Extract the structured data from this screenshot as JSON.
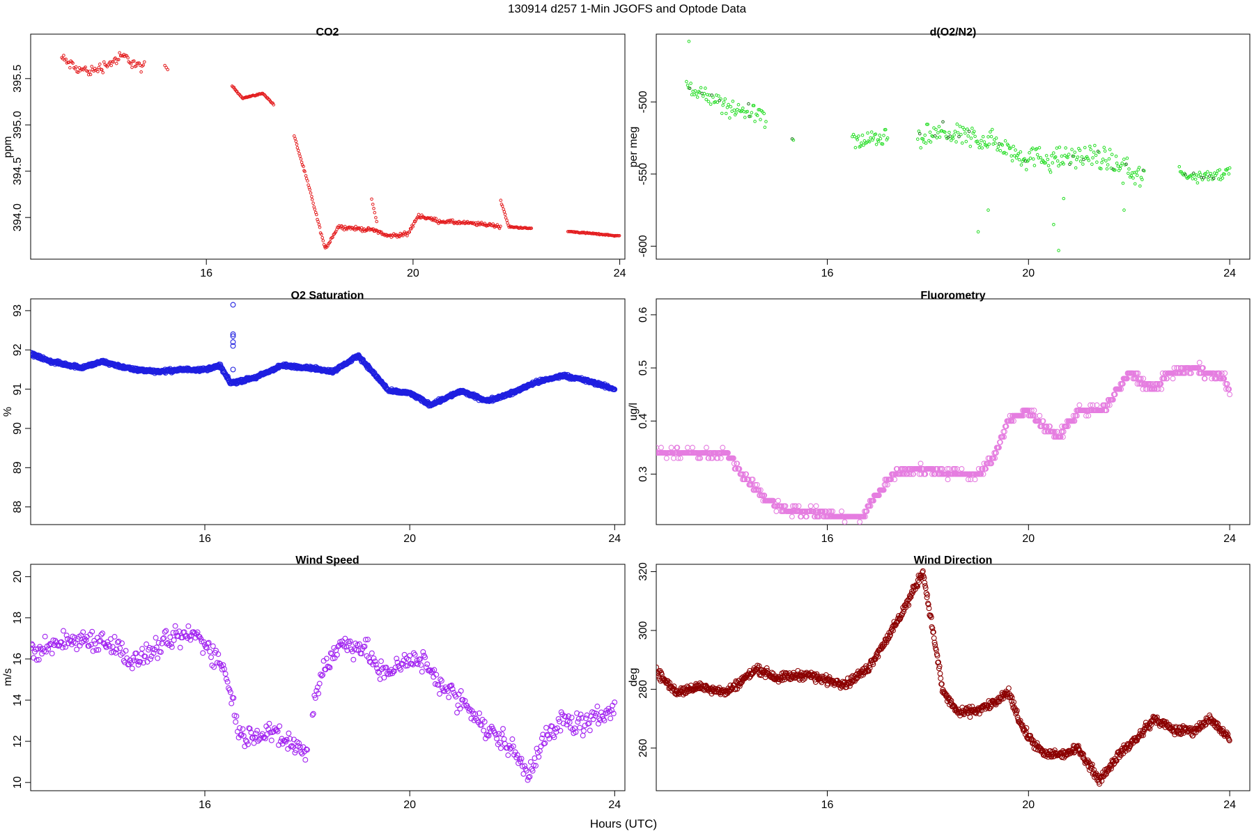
{
  "figure": {
    "title": "130914   d257   1-Min  JGOFS and Optode Data",
    "xlabel": "Hours (UTC)"
  },
  "colors": {
    "co2": "#e31a1c",
    "o2n2": "#22dd22",
    "o2n2_dark": "#1a6a1a",
    "o2sat": "#1f1fe0",
    "fluor": "#e57de0",
    "wspd": "#a020f0",
    "wdir": "#8b0000"
  },
  "chart_data": [
    {
      "id": "co2",
      "type": "scatter",
      "title": "CO2",
      "xlabel": "",
      "ylabel": "ppm",
      "xlim": [
        12.6,
        24.1
      ],
      "ylim": [
        393.55,
        395.98
      ],
      "xticks": [
        16,
        20,
        24
      ],
      "yticks": [
        394.0,
        394.5,
        395.0,
        395.5
      ],
      "yticklabels": [
        "394.0",
        "394.5",
        "395.0",
        "395.5"
      ],
      "segments": [
        {
          "x": [
            13.2,
            13.5,
            13.8,
            14.1,
            14.4,
            14.7,
            14.8
          ],
          "y": [
            395.72,
            395.6,
            395.58,
            395.66,
            395.74,
            395.63,
            395.62
          ],
          "step": 0.02,
          "noise": 0.09
        },
        {
          "x": [
            15.2,
            15.25
          ],
          "y": [
            395.62,
            395.6
          ],
          "step": 0.025,
          "noise": 0.04
        },
        {
          "x": [
            16.5,
            16.7,
            17.1,
            17.3
          ],
          "y": [
            395.42,
            395.29,
            395.34,
            395.22
          ],
          "step": 0.016,
          "noise": 0.01
        },
        {
          "x": [
            17.7,
            18.0,
            18.3
          ],
          "y": [
            394.88,
            394.3,
            393.66
          ],
          "step": 0.016,
          "noise": 0.02
        },
        {
          "x": [
            18.3,
            18.55,
            18.9,
            19.3,
            19.5,
            19.9,
            20.1,
            20.5,
            21.0,
            21.5,
            21.7
          ],
          "y": [
            393.66,
            393.9,
            393.88,
            393.86,
            393.8,
            393.82,
            394.02,
            393.96,
            393.94,
            393.92,
            393.9
          ],
          "step": 0.016,
          "noise": 0.03
        },
        {
          "x": [
            19.2,
            19.3
          ],
          "y": [
            394.2,
            393.95
          ],
          "step": 0.02,
          "noise": 0.02
        },
        {
          "x": [
            21.7,
            21.85,
            22.3
          ],
          "y": [
            394.18,
            393.9,
            393.88
          ],
          "step": 0.016,
          "noise": 0.01
        },
        {
          "x": [
            23.0,
            24.0
          ],
          "y": [
            393.85,
            393.8
          ],
          "step": 0.016,
          "noise": 0.01
        }
      ],
      "marker": "dot"
    },
    {
      "id": "o2n2",
      "type": "scatter",
      "title": "d(O2/N2)",
      "xlabel": "",
      "ylabel": "per meg",
      "xlim": [
        12.6,
        24.4
      ],
      "ylim": [
        -609,
        -453
      ],
      "xticks": [
        16,
        20,
        24
      ],
      "yticks": [
        -500,
        -550,
        -600
      ],
      "yticklabels": [
        "-500",
        "-550",
        "-600"
      ],
      "segments": [
        {
          "x": [
            13.2,
            13.6,
            14.1,
            14.6,
            14.8
          ],
          "y": [
            -488,
            -497,
            -505,
            -508,
            -512
          ],
          "step": 0.022,
          "noise": 10
        },
        {
          "x": [
            15.3,
            15.35
          ],
          "y": [
            -528,
            -525
          ],
          "step": 0.03,
          "noise": 6
        },
        {
          "x": [
            16.5,
            16.9,
            17.2
          ],
          "y": [
            -527,
            -527,
            -524
          ],
          "step": 0.02,
          "noise": 9
        },
        {
          "x": [
            17.8,
            18.2,
            18.8,
            19.4,
            19.9,
            20.5,
            21.0,
            21.6,
            22.0,
            22.3
          ],
          "y": [
            -527,
            -522,
            -524,
            -528,
            -538,
            -540,
            -538,
            -540,
            -548,
            -552
          ],
          "step": 0.02,
          "noise": 12
        },
        {
          "x": [
            23.0,
            23.5,
            24.0
          ],
          "y": [
            -550,
            -552,
            -548
          ],
          "step": 0.02,
          "noise": 6
        }
      ],
      "outliers": {
        "x": [
          13.25,
          19.0,
          19.2,
          20.5,
          20.6,
          20.7,
          21.9
        ],
        "y": [
          -458,
          -590,
          -575,
          -585,
          -603,
          -567,
          -575
        ]
      },
      "marker": "dot"
    },
    {
      "id": "o2sat",
      "type": "scatter",
      "title": "O2 Saturation",
      "xlabel": "",
      "ylabel": "%",
      "xlim": [
        12.6,
        24.2
      ],
      "ylim": [
        87.55,
        93.3
      ],
      "xticks": [
        16,
        20,
        24
      ],
      "yticks": [
        88,
        89,
        90,
        91,
        92,
        93
      ],
      "yticklabels": [
        "88",
        "89",
        "90",
        "91",
        "92",
        "93"
      ],
      "segments": [
        {
          "x": [
            12.6,
            13.0,
            13.6,
            14.0,
            14.6,
            15.1,
            15.6,
            16.0,
            16.3,
            16.5,
            17.0,
            17.5,
            18.0,
            18.5,
            19.0,
            19.3,
            19.6,
            20.0,
            20.4,
            21.0,
            21.5,
            22.0,
            22.4,
            23.0,
            23.5,
            24.0
          ],
          "y": [
            91.9,
            91.7,
            91.55,
            91.7,
            91.5,
            91.45,
            91.5,
            91.5,
            91.6,
            91.15,
            91.3,
            91.6,
            91.55,
            91.45,
            91.85,
            91.4,
            90.95,
            90.9,
            90.6,
            90.95,
            90.7,
            90.9,
            91.15,
            91.35,
            91.2,
            91.0
          ],
          "step": 0.008,
          "noise": 0.06
        }
      ],
      "outliers": {
        "x": [
          16.55,
          16.55,
          16.55,
          16.55,
          16.55,
          16.55
        ],
        "y": [
          93.15,
          92.4,
          92.35,
          92.2,
          92.1,
          91.5
        ]
      },
      "marker": "circle"
    },
    {
      "id": "fluor",
      "type": "scatter",
      "title": "Fluorometry",
      "xlabel": "",
      "ylabel": "ug/l",
      "xlim": [
        12.6,
        24.4
      ],
      "ylim": [
        0.205,
        0.63
      ],
      "xticks": [
        16,
        20,
        24
      ],
      "yticks": [
        0.3,
        0.4,
        0.5,
        0.6
      ],
      "yticklabels": [
        "0.3",
        "0.4",
        "0.5",
        "0.6"
      ],
      "segments": [
        {
          "x": [
            12.6,
            13.3,
            14.0,
            14.3,
            14.8,
            15.2,
            15.7,
            16.2,
            16.7,
            16.9,
            17.3,
            17.8,
            18.5,
            19.0,
            19.3,
            19.6,
            20.0,
            20.3,
            20.6,
            21.0,
            21.5,
            22.0,
            22.5,
            22.8,
            23.3,
            23.9,
            24.0
          ],
          "y": [
            0.34,
            0.34,
            0.34,
            0.3,
            0.25,
            0.23,
            0.23,
            0.22,
            0.22,
            0.25,
            0.3,
            0.31,
            0.3,
            0.3,
            0.33,
            0.4,
            0.42,
            0.39,
            0.37,
            0.42,
            0.42,
            0.49,
            0.46,
            0.49,
            0.5,
            0.48,
            0.45
          ],
          "step": 0.012,
          "noise": 0.012,
          "quant": 0.01
        }
      ],
      "marker": "circle"
    },
    {
      "id": "wspd",
      "type": "scatter",
      "title": "Wind Speed",
      "xlabel": "",
      "ylabel": "m/s",
      "xlim": [
        12.6,
        24.2
      ],
      "ylim": [
        9.6,
        20.6
      ],
      "xticks": [
        16,
        20,
        24
      ],
      "yticks": [
        10,
        12,
        14,
        16,
        18,
        20
      ],
      "yticklabels": [
        "10",
        "12",
        "14",
        "16",
        "18",
        "20"
      ],
      "segments": [
        {
          "x": [
            12.6,
            13.2,
            13.7,
            14.2,
            14.6,
            15.0,
            15.4,
            15.8,
            16.1,
            16.4,
            16.7,
            17.2,
            17.6,
            18.0
          ],
          "y": [
            16.3,
            16.8,
            17.0,
            16.8,
            15.8,
            16.4,
            17.0,
            17.2,
            16.5,
            15.5,
            12.2,
            12.5,
            12.0,
            11.5
          ],
          "step": 0.02,
          "noise": 0.8
        },
        {
          "x": [
            18.1,
            18.3,
            18.7,
            19.1,
            19.5,
            19.9,
            20.3,
            20.7,
            21.1,
            21.5,
            21.9,
            22.3,
            22.6,
            23.0,
            23.5,
            24.0
          ],
          "y": [
            13.5,
            15.5,
            16.8,
            16.5,
            15.2,
            16.0,
            15.8,
            14.5,
            13.8,
            12.5,
            12.0,
            10.5,
            12.0,
            13.0,
            12.8,
            13.8
          ],
          "step": 0.02,
          "noise": 0.8
        }
      ],
      "marker": "circle"
    },
    {
      "id": "wdir",
      "type": "scatter",
      "title": "Wind Direction",
      "xlabel": "",
      "ylabel": "deg",
      "xlim": [
        12.6,
        24.4
      ],
      "ylim": [
        245.5,
        322.5
      ],
      "xticks": [
        16,
        20,
        24
      ],
      "yticks": [
        260,
        280,
        300,
        320
      ],
      "yticklabels": [
        "260",
        "280",
        "300",
        "320"
      ],
      "segments": [
        {
          "x": [
            12.6,
            13.0,
            13.5,
            14.0,
            14.6,
            15.0,
            15.6,
            16.0,
            16.4,
            16.8,
            17.4,
            17.9,
            18.05,
            18.3,
            18.6,
            19.0,
            19.4,
            19.6,
            19.9,
            20.3,
            20.7,
            21.0,
            21.4,
            21.8,
            22.2,
            22.5,
            22.9,
            23.3,
            23.6,
            24.0
          ],
          "y": [
            286,
            279,
            281,
            279,
            287,
            284,
            285,
            283,
            282,
            287,
            303,
            320,
            305,
            279,
            272,
            273,
            276,
            279,
            266,
            258,
            258,
            260,
            249,
            258,
            264,
            270,
            266,
            266,
            270,
            263
          ],
          "step": 0.011,
          "noise": 2.2
        }
      ],
      "marker": "circle"
    }
  ]
}
